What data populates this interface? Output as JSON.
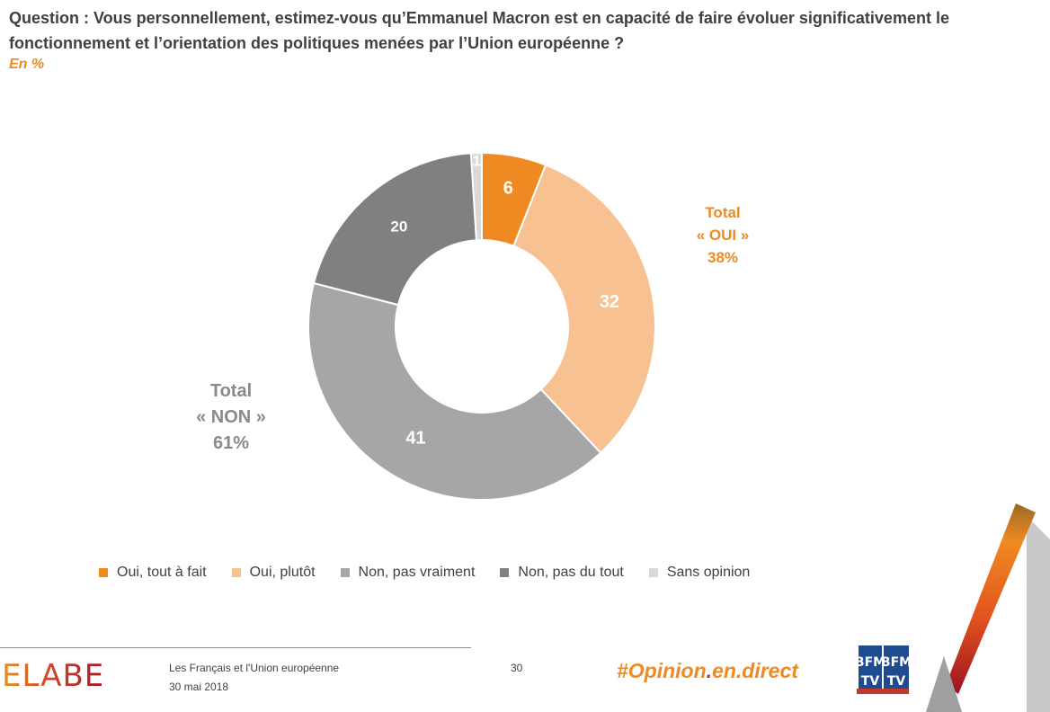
{
  "question": "Question : Vous personnellement, estimez-vous qu’Emmanuel Macron est en capacité de faire évoluer significativement le fonctionnement et l’orientation des politiques menées par l’Union européenne ?",
  "unit": "En  %",
  "totals": {
    "oui": {
      "line1": "Total",
      "line2": "« OUI »",
      "line3": "38%"
    },
    "non": {
      "line1": "Total",
      "line2": "« NON »",
      "line3": "61%"
    }
  },
  "chart_data": {
    "type": "pie",
    "title": "",
    "categories": [
      "Oui, tout à fait",
      "Oui, plutôt",
      "Non, pas vraiment",
      "Non, pas du tout",
      "Sans opinion"
    ],
    "values": [
      6,
      32,
      41,
      20,
      1
    ],
    "colors": [
      "#ef8a22",
      "#f8c192",
      "#a6a6a6",
      "#808080",
      "#d9d9d9"
    ],
    "label_colors": [
      "#ffffff",
      "#ffffff",
      "#ffffff",
      "#ffffff",
      "#ffffff"
    ],
    "legend_position": "bottom"
  },
  "footer": {
    "brand": "ELABE",
    "study": "Les Français et l'Union européenne",
    "date": "30 mai 2018",
    "page": "30",
    "hashtag_main": "#Opinion",
    "hashtag_dot": ".",
    "hashtag_end": "en.direct",
    "partner": "BFM TV"
  }
}
